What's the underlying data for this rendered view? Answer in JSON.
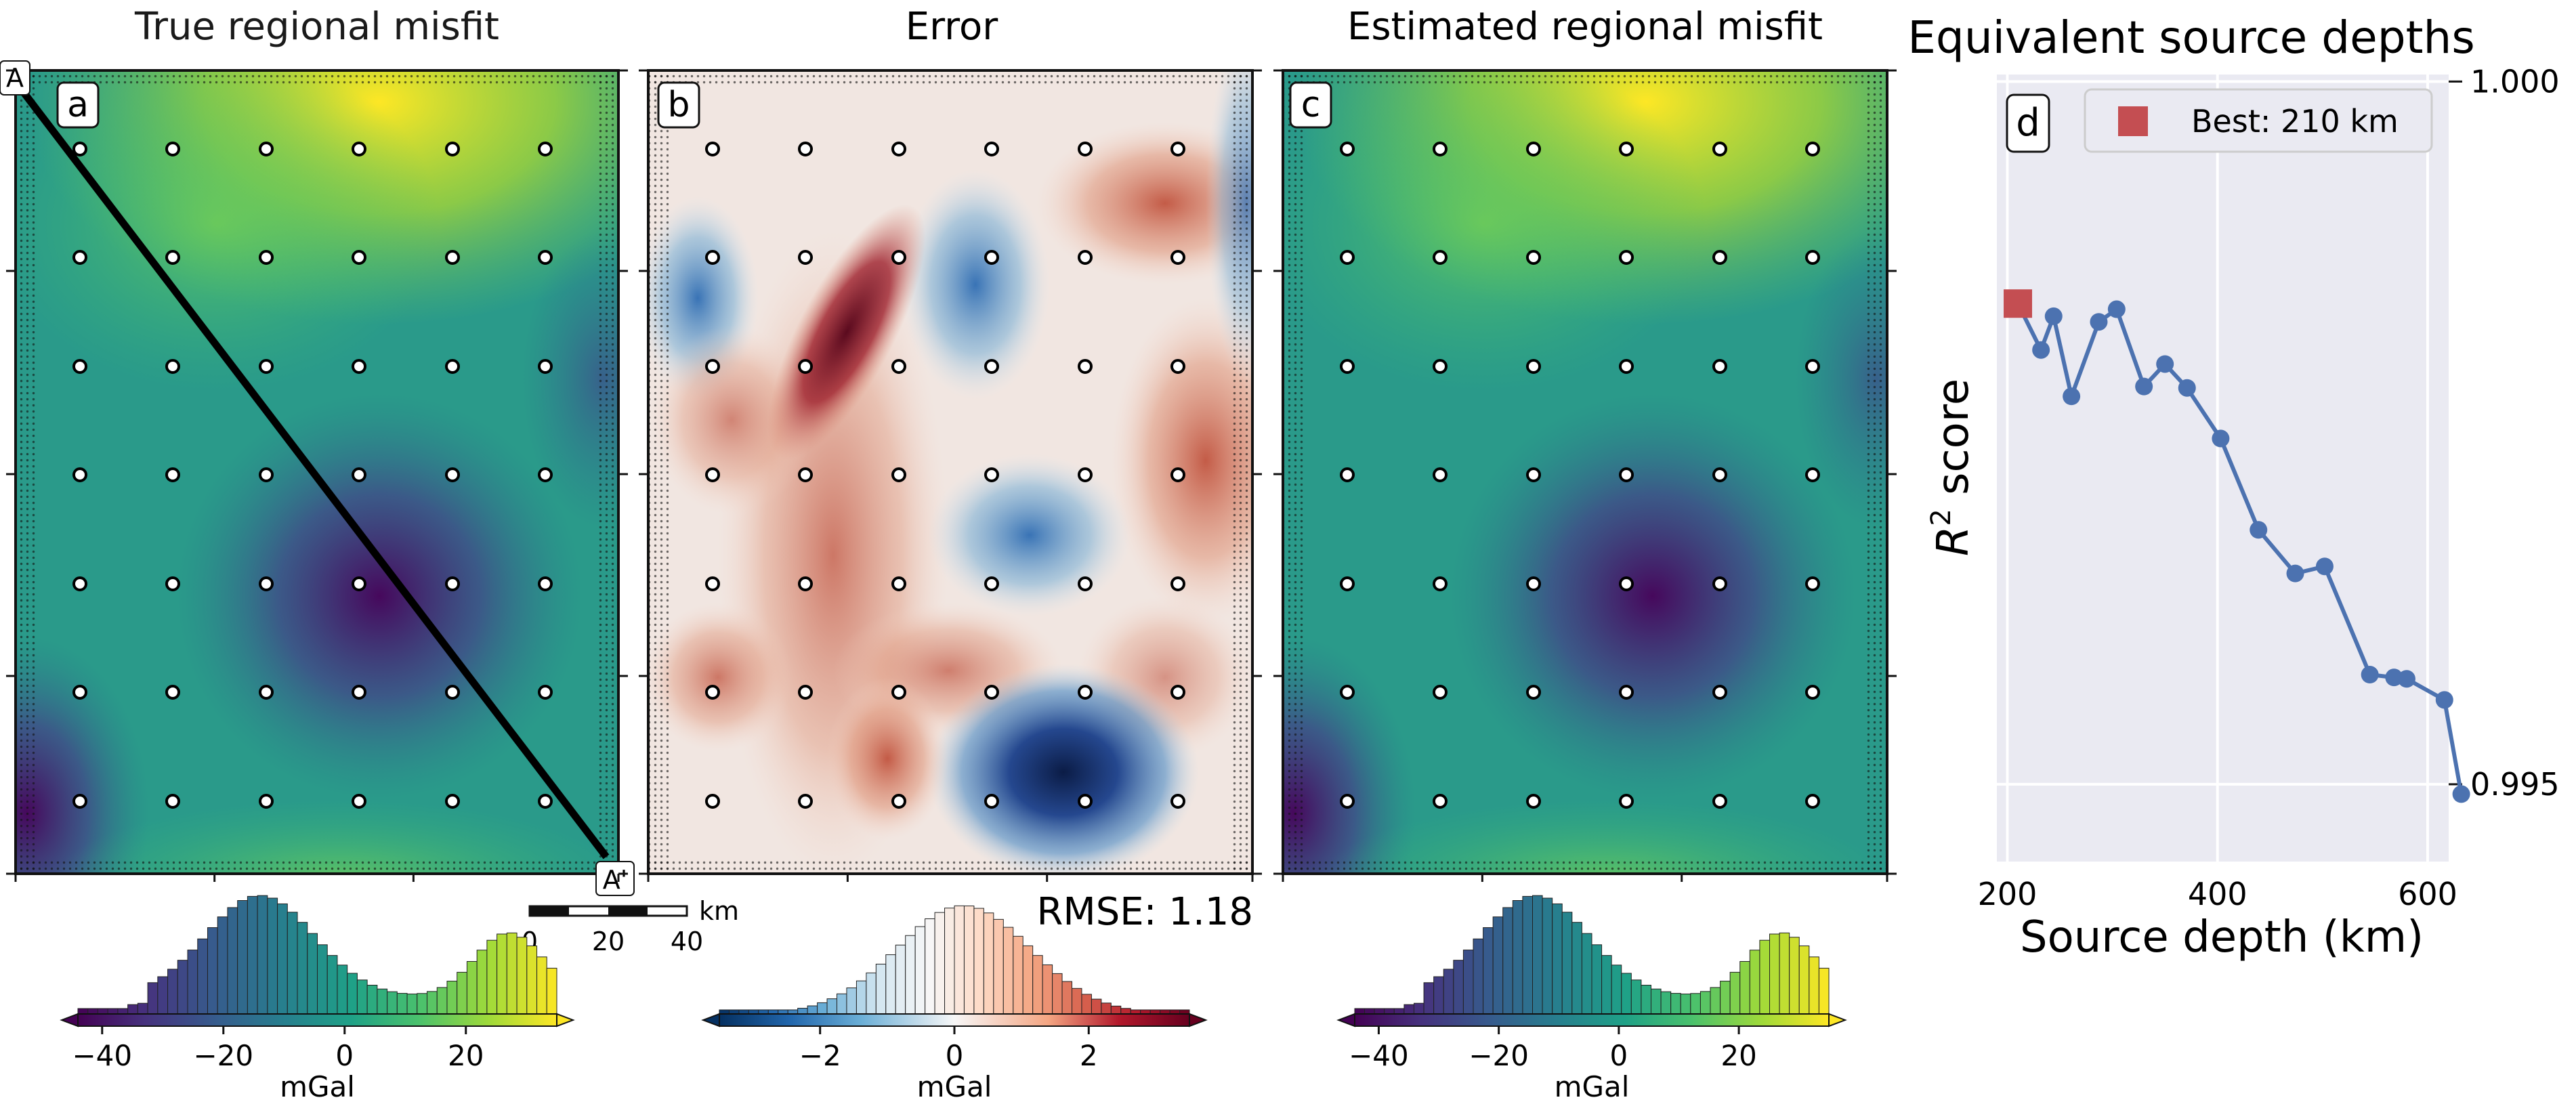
{
  "panels": {
    "a": {
      "letter": "a",
      "title": "True regional misfit",
      "profile_start": "A",
      "profile_end": "A'"
    },
    "b": {
      "letter": "b",
      "title": "Error",
      "rmse": "RMSE: 1.18"
    },
    "c": {
      "letter": "c",
      "title": "Estimated regional misfit"
    }
  },
  "scalebar": {
    "unit": "km",
    "ticks": [
      "0",
      "20",
      "40"
    ]
  },
  "colorbars": {
    "a": {
      "label": "mGal",
      "ticks": [
        "−40",
        "−20",
        "0",
        "20"
      ],
      "tick_values": [
        -40,
        -20,
        0,
        20
      ],
      "range": [
        -44,
        35
      ],
      "colormap": "viridis"
    },
    "b": {
      "label": "mGal",
      "ticks": [
        "−2",
        "0",
        "2"
      ],
      "tick_values": [
        -2,
        0,
        2
      ],
      "range": [
        -3.5,
        3.5
      ],
      "colormap": "RdBu_r"
    },
    "c": {
      "label": "mGal",
      "ticks": [
        "−40",
        "−20",
        "0",
        "20"
      ],
      "tick_values": [
        -40,
        -20,
        0,
        20
      ],
      "range": [
        -44,
        35
      ],
      "colormap": "viridis"
    }
  },
  "colors": {
    "line": "#4c72b0",
    "best": "#c44e52",
    "plot_bg": "#eaeaf2",
    "grid": "#ffffff",
    "frame": "#111111"
  },
  "chart_data": {
    "type": "line",
    "letter": "d",
    "title": "Equivalent source depths",
    "xlabel": "Source depth (km)",
    "ylabel_main": "R",
    "ylabel_sup": "2",
    "ylabel_rest": " score",
    "xlim": [
      190,
      620
    ],
    "ylim": [
      0.99445,
      1.00005
    ],
    "xticks": [
      200,
      400,
      600
    ],
    "xtick_labels": [
      "200",
      "400",
      "600"
    ],
    "yticks": [
      0.995,
      1.0
    ],
    "ytick_labels": [
      "0.995",
      "1.000"
    ],
    "series": [
      {
        "name": "R2 score",
        "x": [
          210,
          232,
          244,
          261,
          287,
          304,
          330,
          350,
          371,
          403,
          439,
          474,
          502,
          545,
          568,
          580,
          616,
          632
        ],
        "y": [
          0.99842,
          0.99809,
          0.99833,
          0.99776,
          0.99829,
          0.99838,
          0.99783,
          0.99799,
          0.99782,
          0.99746,
          0.99681,
          0.9965,
          0.99655,
          0.99578,
          0.99576,
          0.99575,
          0.9956,
          0.99493
        ]
      }
    ],
    "best": {
      "x": 210,
      "y": 0.99842,
      "label": "Best: 210 km"
    }
  }
}
